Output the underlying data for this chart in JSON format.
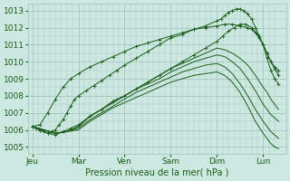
{
  "bg_color": "#cce8e0",
  "grid_major_color": "#aaccc4",
  "grid_minor_color": "#bbddd6",
  "line_color": "#1a5c1a",
  "xlabel": "Pression niveau de la mer( hPa )",
  "xlabel_color": "#1a5c1a",
  "tick_color": "#1a5c1a",
  "ylim": [
    1004.6,
    1013.4
  ],
  "yticks": [
    1005,
    1006,
    1007,
    1008,
    1009,
    1010,
    1011,
    1012,
    1013
  ],
  "day_labels": [
    "Jeu",
    "Mar",
    "Ven",
    "Sam",
    "Dim",
    "Lun"
  ],
  "day_positions": [
    0,
    24,
    48,
    72,
    96,
    120
  ],
  "xlim": [
    -2,
    132
  ],
  "lines": [
    {
      "x": [
        0,
        2,
        4,
        6,
        8,
        10,
        12,
        14,
        16,
        18,
        20,
        22,
        24,
        28,
        32,
        36,
        40,
        44,
        48,
        54,
        60,
        66,
        72,
        78,
        84,
        90,
        96,
        98,
        100,
        102,
        104,
        106,
        108,
        110,
        112,
        114,
        116,
        118,
        120,
        122,
        124,
        126,
        128
      ],
      "y": [
        1006.2,
        1006.1,
        1006.0,
        1005.9,
        1005.8,
        1005.9,
        1006.0,
        1006.3,
        1006.6,
        1007.0,
        1007.4,
        1007.8,
        1008.0,
        1008.3,
        1008.6,
        1008.9,
        1009.2,
        1009.5,
        1009.8,
        1010.2,
        1010.6,
        1011.0,
        1011.4,
        1011.6,
        1011.9,
        1012.1,
        1012.4,
        1012.5,
        1012.7,
        1012.9,
        1013.0,
        1013.1,
        1013.1,
        1013.0,
        1012.8,
        1012.5,
        1012.0,
        1011.5,
        1011.0,
        1010.5,
        1010.0,
        1009.7,
        1009.5
      ],
      "style": "marker"
    },
    {
      "x": [
        0,
        4,
        8,
        12,
        16,
        20,
        24,
        30,
        36,
        42,
        48,
        54,
        60,
        66,
        72,
        78,
        84,
        90,
        96,
        99,
        102,
        105,
        108,
        111,
        114,
        117,
        120,
        122,
        124,
        126,
        128
      ],
      "y": [
        1006.2,
        1006.0,
        1005.8,
        1005.7,
        1005.9,
        1006.1,
        1006.3,
        1006.8,
        1007.2,
        1007.7,
        1008.0,
        1008.4,
        1008.8,
        1009.2,
        1009.6,
        1010.0,
        1010.4,
        1010.8,
        1011.2,
        1011.5,
        1011.8,
        1012.0,
        1012.2,
        1012.2,
        1012.0,
        1011.6,
        1011.0,
        1010.2,
        1009.5,
        1009.0,
        1008.7
      ],
      "style": "marker"
    },
    {
      "x": [
        0,
        6,
        12,
        18,
        24,
        30,
        36,
        42,
        48,
        54,
        60,
        66,
        72,
        78,
        84,
        90,
        96,
        100,
        104,
        108,
        112,
        116,
        120,
        122,
        124,
        126,
        128
      ],
      "y": [
        1006.2,
        1006.0,
        1005.8,
        1005.9,
        1006.2,
        1006.8,
        1007.2,
        1007.6,
        1008.0,
        1008.4,
        1008.8,
        1009.2,
        1009.6,
        1009.9,
        1010.2,
        1010.5,
        1010.8,
        1010.7,
        1010.5,
        1010.2,
        1009.8,
        1009.2,
        1008.5,
        1008.2,
        1007.8,
        1007.5,
        1007.2
      ],
      "style": "solid"
    },
    {
      "x": [
        0,
        6,
        12,
        18,
        24,
        30,
        36,
        42,
        48,
        54,
        60,
        66,
        72,
        78,
        84,
        90,
        96,
        100,
        104,
        108,
        112,
        116,
        120,
        122,
        124,
        126,
        128
      ],
      "y": [
        1006.2,
        1006.0,
        1005.8,
        1005.9,
        1006.2,
        1006.8,
        1007.2,
        1007.6,
        1008.0,
        1008.4,
        1008.7,
        1009.0,
        1009.4,
        1009.7,
        1010.0,
        1010.2,
        1010.4,
        1010.3,
        1010.0,
        1009.6,
        1009.0,
        1008.3,
        1007.5,
        1007.2,
        1006.9,
        1006.7,
        1006.5
      ],
      "style": "solid"
    },
    {
      "x": [
        0,
        6,
        12,
        18,
        24,
        30,
        36,
        42,
        48,
        54,
        60,
        66,
        72,
        78,
        84,
        90,
        96,
        100,
        104,
        108,
        112,
        116,
        120,
        122,
        124,
        126,
        128
      ],
      "y": [
        1006.2,
        1006.0,
        1005.8,
        1005.9,
        1006.1,
        1006.6,
        1007.0,
        1007.4,
        1007.8,
        1008.2,
        1008.5,
        1008.8,
        1009.1,
        1009.4,
        1009.6,
        1009.8,
        1009.9,
        1009.7,
        1009.3,
        1008.7,
        1008.0,
        1007.2,
        1006.5,
        1006.2,
        1005.9,
        1005.7,
        1005.5
      ],
      "style": "solid"
    },
    {
      "x": [
        0,
        6,
        12,
        18,
        24,
        30,
        36,
        42,
        48,
        54,
        60,
        66,
        72,
        78,
        84,
        90,
        96,
        100,
        104,
        108,
        112,
        116,
        120,
        122,
        124,
        126,
        128
      ],
      "y": [
        1006.2,
        1006.0,
        1005.8,
        1005.9,
        1006.0,
        1006.5,
        1006.9,
        1007.3,
        1007.6,
        1007.9,
        1008.2,
        1008.5,
        1008.8,
        1009.0,
        1009.2,
        1009.3,
        1009.4,
        1009.2,
        1008.8,
        1008.2,
        1007.4,
        1006.5,
        1005.8,
        1005.5,
        1005.2,
        1005.0,
        1004.9
      ],
      "style": "solid"
    },
    {
      "x": [
        0,
        4,
        8,
        12,
        16,
        20,
        24,
        30,
        36,
        42,
        48,
        54,
        60,
        66,
        72,
        78,
        84,
        90,
        96,
        100,
        104,
        108,
        112,
        114,
        116,
        118,
        120,
        122,
        124,
        126,
        128
      ],
      "y": [
        1006.2,
        1006.3,
        1007.0,
        1007.8,
        1008.5,
        1009.0,
        1009.3,
        1009.7,
        1010.0,
        1010.3,
        1010.6,
        1010.9,
        1011.1,
        1011.3,
        1011.5,
        1011.7,
        1011.9,
        1012.0,
        1012.1,
        1012.2,
        1012.2,
        1012.1,
        1012.0,
        1011.9,
        1011.7,
        1011.4,
        1011.0,
        1010.5,
        1010.0,
        1009.6,
        1009.2
      ],
      "style": "marker"
    }
  ]
}
